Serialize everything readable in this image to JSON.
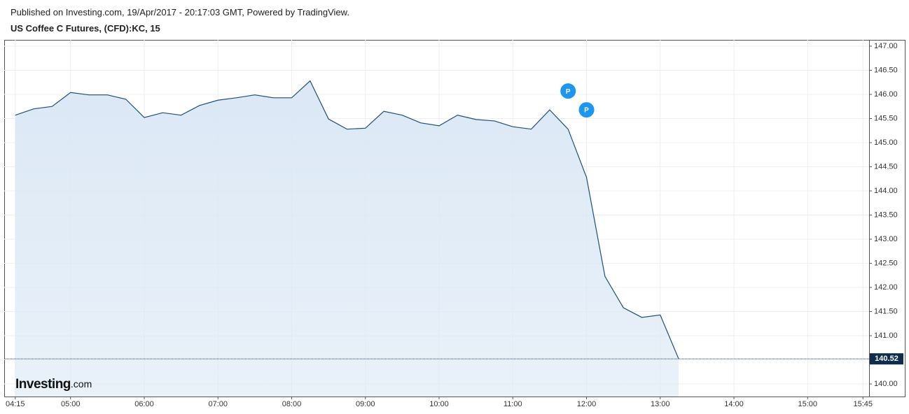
{
  "header": {
    "published": "Published on Investing.com, 19/Apr/2017 - 20:17:03 GMT, Powered by TradingView."
  },
  "chart_data": {
    "type": "area",
    "title": "US Coffee C Futures, (CFD):KC, 15",
    "x": [
      "04:15",
      "04:30",
      "04:45",
      "05:00",
      "05:15",
      "05:30",
      "05:45",
      "06:00",
      "06:15",
      "06:30",
      "06:45",
      "07:00",
      "07:15",
      "07:30",
      "07:45",
      "08:00",
      "08:15",
      "08:30",
      "08:45",
      "09:00",
      "09:15",
      "09:30",
      "09:45",
      "10:00",
      "10:15",
      "10:30",
      "10:45",
      "11:00",
      "11:15",
      "11:30",
      "11:45",
      "12:00",
      "12:15",
      "12:30",
      "12:45",
      "13:00",
      "13:15"
    ],
    "values": [
      145.57,
      145.7,
      145.75,
      146.04,
      145.99,
      145.99,
      145.9,
      145.52,
      145.62,
      145.57,
      145.77,
      145.88,
      145.93,
      145.99,
      145.93,
      145.93,
      146.28,
      145.49,
      145.28,
      145.3,
      145.65,
      145.57,
      145.41,
      145.35,
      145.57,
      145.48,
      145.45,
      145.33,
      145.28,
      145.68,
      145.28,
      144.28,
      142.23,
      141.58,
      141.38,
      141.43,
      140.52
    ],
    "color": "#1f4e79",
    "fill": "#dbe8f5",
    "xlim": [
      "04:06",
      "15:50"
    ],
    "xticks": [
      "04:15",
      "05:00",
      "06:00",
      "07:00",
      "08:00",
      "09:00",
      "10:00",
      "11:00",
      "12:00",
      "13:00",
      "14:00",
      "15:00",
      "15:45"
    ],
    "ylim": [
      139.74,
      147.13
    ],
    "yticks": [
      {
        "value": 140,
        "label": "140.00"
      },
      {
        "value": 140.5,
        "label": "140.50"
      },
      {
        "value": 141,
        "label": "141.00"
      },
      {
        "value": 141.5,
        "label": "141.50"
      },
      {
        "value": 142,
        "label": "142.00"
      },
      {
        "value": 142.5,
        "label": "142.50"
      },
      {
        "value": 143,
        "label": "143.00"
      },
      {
        "value": 143.5,
        "label": "143.50"
      },
      {
        "value": 144,
        "label": "144.00"
      },
      {
        "value": 144.5,
        "label": "144.50"
      },
      {
        "value": 145,
        "label": "145.00"
      },
      {
        "value": 145.5,
        "label": "145.50"
      },
      {
        "value": 146,
        "label": "146.00"
      },
      {
        "value": 146.5,
        "label": "146.50"
      },
      {
        "value": 147,
        "label": "147.00"
      }
    ],
    "grid": true,
    "markers": [
      {
        "x": "11:45",
        "y": 146.07,
        "label": "P"
      },
      {
        "x": "12:00",
        "y": 145.68,
        "label": "P"
      }
    ],
    "logo": {
      "brand": "Investing",
      "suffix": ".com"
    }
  }
}
